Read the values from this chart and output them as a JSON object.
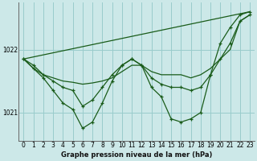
{
  "background_color": "#cce8e8",
  "grid_color": "#99cccc",
  "line_color": "#1a5c1a",
  "xlabel": "Graphe pression niveau de la mer (hPa)",
  "ylim": [
    1020.55,
    1022.75
  ],
  "xlim": [
    -0.5,
    23.5
  ],
  "yticks": [
    1021,
    1022
  ],
  "xticks": [
    0,
    1,
    2,
    3,
    4,
    5,
    6,
    7,
    8,
    9,
    10,
    11,
    12,
    13,
    14,
    15,
    16,
    17,
    18,
    19,
    20,
    21,
    22,
    23
  ],
  "line_smooth": {
    "x": [
      0,
      1,
      2,
      3,
      4,
      5,
      6,
      7,
      8,
      9,
      10,
      11,
      12,
      13,
      14,
      15,
      16,
      17,
      18,
      19,
      20,
      21,
      22,
      23
    ],
    "y": [
      1021.85,
      1021.75,
      1021.6,
      1021.5,
      1021.4,
      1021.35,
      1021.1,
      1021.2,
      1021.4,
      1021.6,
      1021.75,
      1021.85,
      1021.75,
      1021.55,
      1021.45,
      1021.4,
      1021.4,
      1021.35,
      1021.4,
      1021.6,
      1021.85,
      1022.1,
      1022.45,
      1022.55
    ]
  },
  "line_detail": {
    "x": [
      0,
      1,
      2,
      3,
      4,
      5,
      6,
      7,
      8,
      9,
      10,
      11,
      12,
      13,
      14,
      15,
      16,
      17,
      18,
      19,
      20,
      21,
      22,
      23
    ],
    "y": [
      1021.85,
      1021.7,
      1021.55,
      1021.35,
      1021.15,
      1021.05,
      1020.75,
      1020.85,
      1021.15,
      1021.5,
      1021.75,
      1021.85,
      1021.75,
      1021.4,
      1021.25,
      1020.9,
      1020.85,
      1020.9,
      1021.0,
      1021.6,
      1022.1,
      1022.35,
      1022.55,
      1022.6
    ]
  },
  "line_flat": {
    "x": [
      0,
      1,
      2,
      3,
      4,
      5,
      6,
      7,
      8,
      9,
      10,
      11,
      12,
      13,
      14,
      15,
      16,
      17,
      18,
      19,
      20,
      21,
      22,
      23
    ],
    "y": [
      1021.85,
      1021.7,
      1021.6,
      1021.55,
      1021.5,
      1021.48,
      1021.45,
      1021.47,
      1021.5,
      1021.55,
      1021.65,
      1021.75,
      1021.75,
      1021.65,
      1021.6,
      1021.6,
      1021.6,
      1021.55,
      1021.6,
      1021.7,
      1021.85,
      1022.0,
      1022.45,
      1022.55
    ]
  },
  "line_trend": {
    "x": [
      0,
      23
    ],
    "y": [
      1021.85,
      1022.6
    ]
  }
}
